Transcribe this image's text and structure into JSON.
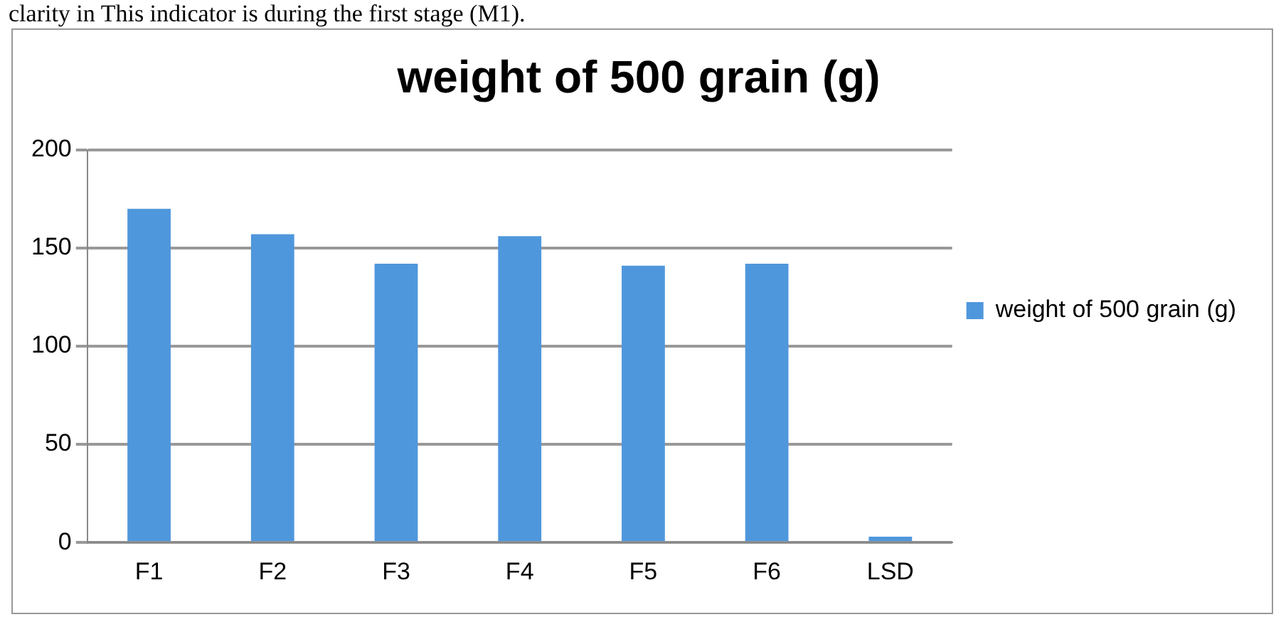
{
  "chart_data": {
    "type": "bar",
    "title": "weight of 500 grain (g)",
    "annotations": [
      "clarity in This indicator is during the first stage (M1)."
    ],
    "categories": [
      "F1",
      "F2",
      "F3",
      "F4",
      "F5",
      "F6",
      "LSD"
    ],
    "series": [
      {
        "name": "weight of 500 grain (g)",
        "color": "#4f97dc",
        "values": [
          170,
          157,
          142,
          156,
          141,
          142,
          3
        ]
      }
    ],
    "ylim": [
      0,
      200
    ],
    "yticks": [
      0,
      50,
      100,
      150,
      200
    ],
    "grid": "y",
    "legend": "right"
  }
}
